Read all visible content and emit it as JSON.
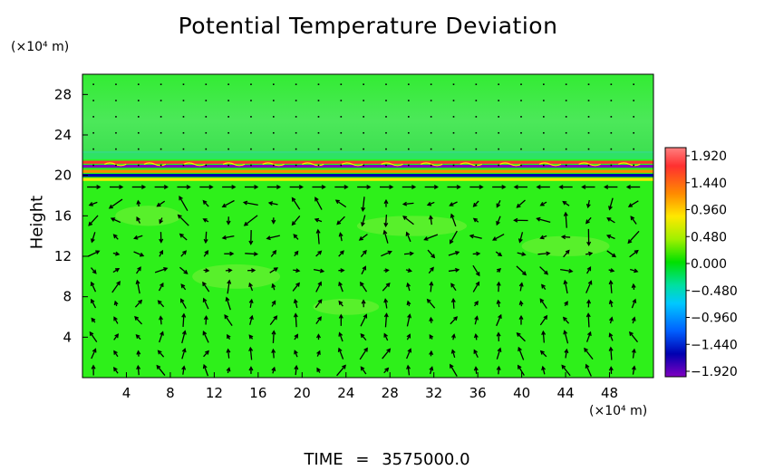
{
  "chart_data": {
    "type": "heatmap",
    "title": "Potential Temperature Deviation",
    "ylabel": "Height",
    "x_unit": "(×10⁴ m)",
    "y_unit": "(×10⁴ m)",
    "xlim": [
      0,
      52
    ],
    "ylim": [
      0,
      30
    ],
    "x_ticks": [
      4,
      8,
      12,
      16,
      20,
      24,
      28,
      32,
      36,
      40,
      44,
      48
    ],
    "y_ticks": [
      4,
      8,
      12,
      16,
      20,
      24,
      28
    ],
    "colorbar": {
      "range": [
        -1.92,
        1.92
      ],
      "tick_labels": [
        "1.920",
        "1.440",
        "0.960",
        "0.480",
        "0.000",
        "−0.480",
        "−0.960",
        "−1.440",
        "−1.920"
      ]
    },
    "overlay": "wind vector arrows",
    "bands": [
      {
        "height": 21.3,
        "value": 1.7
      },
      {
        "height": 20.9,
        "value": -1.8
      },
      {
        "height": 20.4,
        "value": 1.5
      },
      {
        "height": 20.0,
        "value": -1.2
      },
      {
        "height": 19.6,
        "value": 0.9
      }
    ]
  },
  "time": {
    "label": "TIME",
    "equals": "=",
    "value": "3575000.0"
  },
  "colors": {
    "field_base": "#2ef01a",
    "upper_region": "#55e86a"
  }
}
